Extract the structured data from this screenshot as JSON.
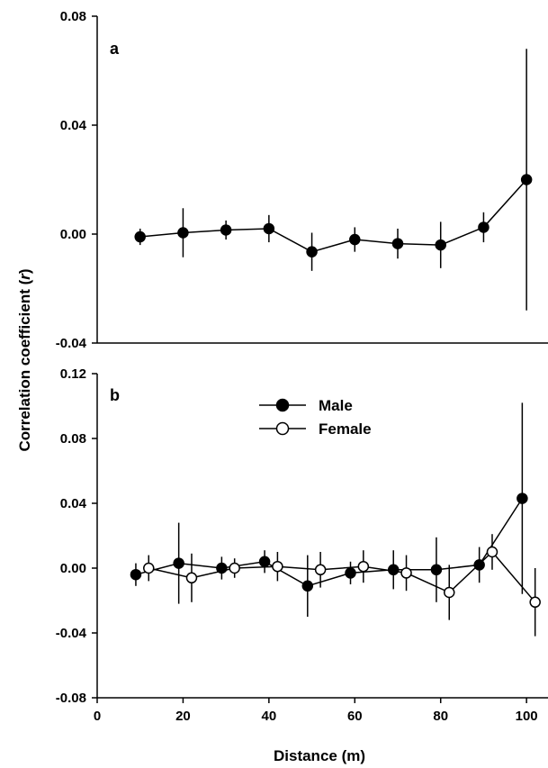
{
  "chart_data": {
    "type": "scatter",
    "xlabel": "Distance (m)",
    "ylabel_prefix": "Correlation coefficient (",
    "ylabel_italic": "r",
    "ylabel_suffix": ")",
    "xlim": [
      0,
      105
    ],
    "xticks": [
      "0",
      "20",
      "40",
      "60",
      "80",
      "100"
    ],
    "panels": [
      {
        "label": "a",
        "ylim": [
          -0.04,
          0.08
        ],
        "yticks": [
          "-0.04",
          "0.00",
          "0.04",
          "0.08"
        ],
        "legend": false,
        "series": [
          {
            "fill": "#000000",
            "points": [
              {
                "x": 10,
                "y": -0.001,
                "err": 0.003
              },
              {
                "x": 20,
                "y": 0.0005,
                "err": 0.009
              },
              {
                "x": 30,
                "y": 0.0015,
                "err": 0.0035
              },
              {
                "x": 40,
                "y": 0.002,
                "err": 0.005
              },
              {
                "x": 50,
                "y": -0.0065,
                "err": 0.007
              },
              {
                "x": 60,
                "y": -0.002,
                "err": 0.0045
              },
              {
                "x": 70,
                "y": -0.0035,
                "err": 0.0055
              },
              {
                "x": 80,
                "y": -0.004,
                "err": 0.0085
              },
              {
                "x": 90,
                "y": 0.0025,
                "err": 0.0055
              },
              {
                "x": 100,
                "y": 0.02,
                "err": 0.048
              }
            ]
          }
        ]
      },
      {
        "label": "b",
        "ylim": [
          -0.08,
          0.12
        ],
        "yticks": [
          "-0.08",
          "-0.04",
          "0.00",
          "0.04",
          "0.08",
          "0.12"
        ],
        "legend": true,
        "legend_position": "top-center",
        "series": [
          {
            "name": "Male",
            "fill": "#000000",
            "points": [
              {
                "x": 9,
                "y": -0.004,
                "err": 0.007
              },
              {
                "x": 19,
                "y": 0.003,
                "err": 0.025
              },
              {
                "x": 29,
                "y": 0.0,
                "err": 0.007
              },
              {
                "x": 39,
                "y": 0.004,
                "err": 0.007
              },
              {
                "x": 49,
                "y": -0.011,
                "err": 0.019
              },
              {
                "x": 59,
                "y": -0.003,
                "err": 0.007
              },
              {
                "x": 69,
                "y": -0.001,
                "err": 0.012
              },
              {
                "x": 79,
                "y": -0.001,
                "err": 0.02
              },
              {
                "x": 89,
                "y": 0.002,
                "err": 0.011
              },
              {
                "x": 99,
                "y": 0.043,
                "err": 0.059
              }
            ]
          },
          {
            "name": "Female",
            "fill": "#ffffff",
            "points": [
              {
                "x": 12,
                "y": 0.0,
                "err": 0.008
              },
              {
                "x": 22,
                "y": -0.006,
                "err": 0.015
              },
              {
                "x": 32,
                "y": 0.0,
                "err": 0.006
              },
              {
                "x": 42,
                "y": 0.001,
                "err": 0.009
              },
              {
                "x": 52,
                "y": -0.001,
                "err": 0.011
              },
              {
                "x": 62,
                "y": 0.001,
                "err": 0.01
              },
              {
                "x": 72,
                "y": -0.003,
                "err": 0.011
              },
              {
                "x": 82,
                "y": -0.015,
                "err": 0.017
              },
              {
                "x": 92,
                "y": 0.01,
                "err": 0.011
              },
              {
                "x": 102,
                "y": -0.021,
                "err": 0.021
              }
            ]
          }
        ]
      }
    ]
  }
}
